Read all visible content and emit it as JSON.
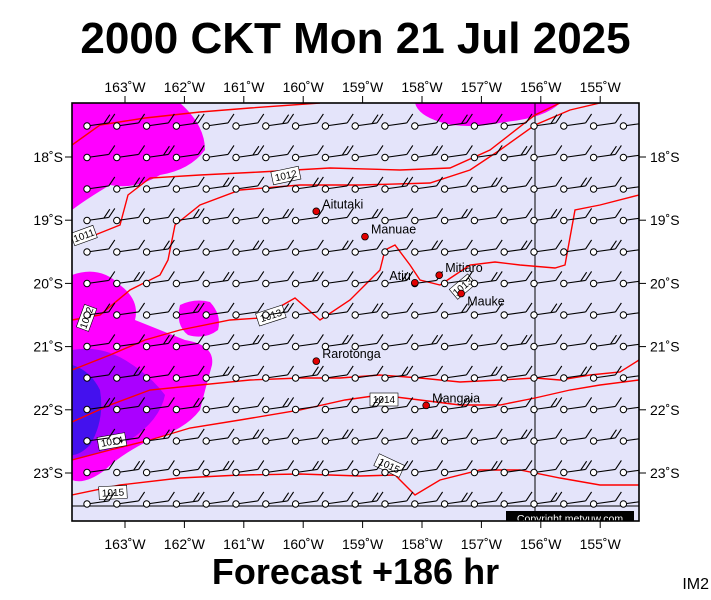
{
  "title": "2000 CKT Mon 21 Jul 2025",
  "subtitle": "Forecast +186 hr",
  "corner_label": "IM2",
  "copyright": "Copyright metvuw.com",
  "longitude_labels": [
    "163˚W",
    "162˚W",
    "161˚W",
    "160˚W",
    "159˚W",
    "158˚W",
    "157˚W",
    "156˚W",
    "155˚W"
  ],
  "longitudes": [
    -163,
    -162,
    -161,
    -160,
    -159,
    -158,
    -157,
    -156,
    -155
  ],
  "latitude_labels": [
    "18˚S",
    "19˚S",
    "20˚S",
    "21˚S",
    "22˚S",
    "23˚S"
  ],
  "latitudes": [
    -18,
    -19,
    -20,
    -21,
    -22,
    -23
  ],
  "isobar_labels": [
    "1012",
    "1011",
    "1012",
    "1013",
    "1013",
    "1014",
    "1014",
    "1015",
    "1015"
  ],
  "islands": [
    {
      "name": "Aitutaki",
      "lon": -159.78,
      "lat": -18.86
    },
    {
      "name": "Manuae",
      "lon": -158.96,
      "lat": -19.26
    },
    {
      "name": "Mitiaro",
      "lon": -157.71,
      "lat": -19.87
    },
    {
      "name": "Atiu",
      "lon": -158.12,
      "lat": -19.99
    },
    {
      "name": "Mauke",
      "lon": -157.34,
      "lat": -20.16
    },
    {
      "name": "Rarotonga",
      "lon": -159.78,
      "lat": -21.23
    },
    {
      "name": "Mangaia",
      "lon": -157.93,
      "lat": -21.93
    }
  ],
  "colors": {
    "ocean": "#e4e4fa",
    "isobar": "#ff0000",
    "precip_light": "#ff00ff",
    "precip_medium": "#aa00ff",
    "precip_heavy": "#3300ff",
    "island": "#e00000"
  }
}
